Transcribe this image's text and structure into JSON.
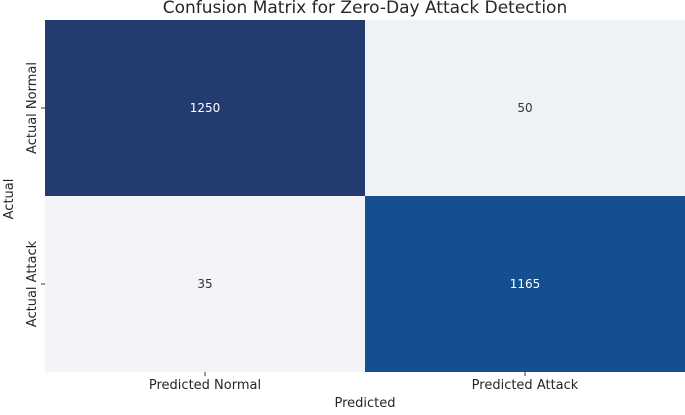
{
  "chart_data": {
    "type": "heatmap",
    "title": "Confusion Matrix for Zero-Day Attack Detection",
    "xlabel": "Predicted",
    "ylabel": "Actual",
    "x_categories": [
      "Predicted Normal",
      "Predicted Attack"
    ],
    "y_categories": [
      "Actual Normal",
      "Actual Attack"
    ],
    "values": [
      [
        1250,
        50
      ],
      [
        35,
        1165
      ]
    ],
    "colorscale": "Blues",
    "colors": {
      "cells": [
        [
          "#233b6e",
          "#eef1f5"
        ],
        [
          "#f3f4f7",
          "#154f8f"
        ]
      ],
      "dark_text": "#333333",
      "light_text": "#ffffff"
    },
    "grid": false,
    "colorbar": false
  }
}
